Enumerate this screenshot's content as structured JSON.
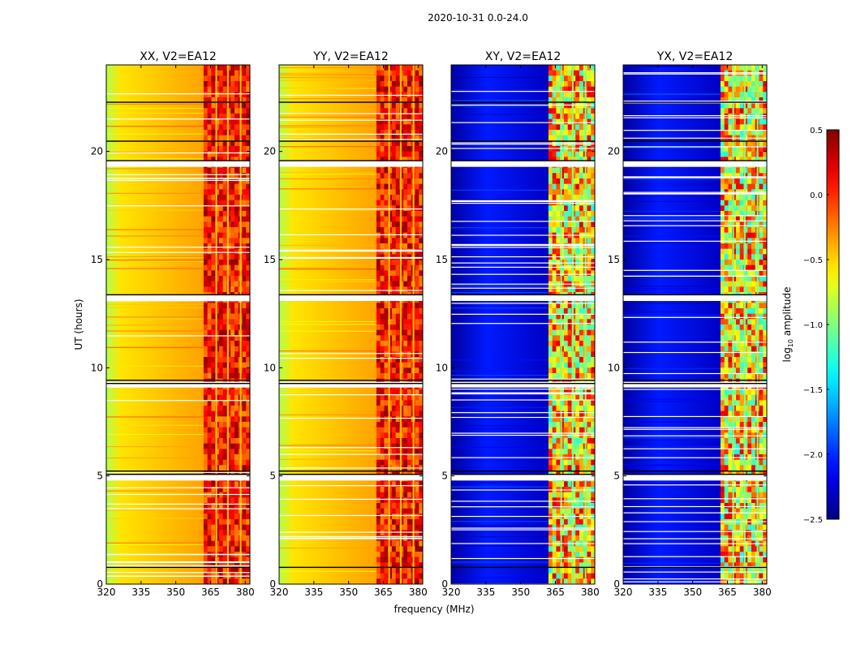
{
  "suptitle": "2020-10-31 0.0-24.0",
  "chart_data": {
    "type": "heatmap",
    "suptitle": "2020-10-31 0.0-24.0",
    "xlabel": "frequency (MHz)",
    "ylabel": "UT (hours)",
    "xlim": [
      320,
      382
    ],
    "ylim": [
      0,
      24
    ],
    "xticks": [
      320,
      335,
      350,
      365,
      380
    ],
    "yticks": [
      0,
      5,
      10,
      15,
      20
    ],
    "colormap": "jet",
    "panels": [
      {
        "title": "XX, V2=EA12",
        "polarization": "XX",
        "kind": "parallel",
        "show_xlabel": false
      },
      {
        "title": "YY, V2=EA12",
        "polarization": "YY",
        "kind": "parallel",
        "show_xlabel": true
      },
      {
        "title": "XY, V2=EA12",
        "polarization": "XY",
        "kind": "cross",
        "show_xlabel": false
      },
      {
        "title": "YX, V2=EA12",
        "polarization": "YX",
        "kind": "cross",
        "show_xlabel": false
      }
    ],
    "colorbar": {
      "label": "log10 amplitude",
      "label_main": "log",
      "label_sub": "10",
      "label_rest": " amplitude",
      "range": [
        -2.5,
        0.5
      ],
      "ticks": [
        0.5,
        0.0,
        -0.5,
        -1.0,
        -1.5,
        -2.0,
        -2.5
      ],
      "tick_labels": [
        "0.5",
        "0.0",
        "−0.5",
        "−1.0",
        "−1.5",
        "−2.0",
        "−2.5"
      ]
    },
    "flagged_rows_ut": [
      19.4,
      13.2,
      9.2,
      4.9
    ],
    "black_lines_ut": [
      0.8,
      5.1,
      5.25,
      9.3,
      9.45,
      13.4,
      19.6,
      20.5,
      22.3
    ],
    "band_start_mhz": 362
  }
}
